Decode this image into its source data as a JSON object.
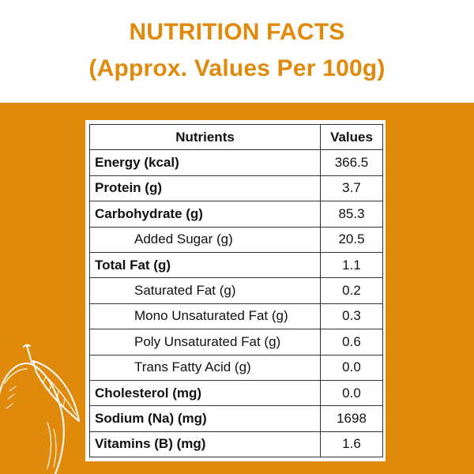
{
  "header": {
    "title_line1": "NUTRITION FACTS",
    "title_line2": "(Approx. Values Per 100g)"
  },
  "colors": {
    "accent": "#e0890a",
    "band": "#e08a0b",
    "border": "#333333"
  },
  "table": {
    "columns": [
      "Nutrients",
      "Values"
    ],
    "rows": [
      {
        "nutrient": "Energy (kcal)",
        "value": "366.5",
        "bold": true
      },
      {
        "nutrient": "Protein (g)",
        "value": "3.7",
        "bold": true
      },
      {
        "nutrient": "Carbohydrate (g)",
        "value": "85.3",
        "bold": true
      },
      {
        "nutrient": "Added Sugar (g)",
        "value": "20.5",
        "bold": false
      },
      {
        "nutrient": "Total Fat (g)",
        "value": "1.1",
        "bold": true
      },
      {
        "nutrient": "Saturated Fat (g)",
        "value": "0.2",
        "bold": false
      },
      {
        "nutrient": "Mono Unsaturated Fat (g)",
        "value": "0.3",
        "bold": false
      },
      {
        "nutrient": "Poly Unsaturated Fat (g)",
        "value": "0.6",
        "bold": false
      },
      {
        "nutrient": "Trans Fatty Acid (g)",
        "value": "0.0",
        "bold": false
      },
      {
        "nutrient": "Cholesterol (mg)",
        "value": "0.0",
        "bold": true
      },
      {
        "nutrient": "Sodium (Na) (mg)",
        "value": "1698",
        "bold": true
      },
      {
        "nutrient": "Vitamins (B) (mg)",
        "value": "1.6",
        "bold": true
      }
    ]
  },
  "decoration": {
    "icon": "mango-line-art-icon"
  }
}
